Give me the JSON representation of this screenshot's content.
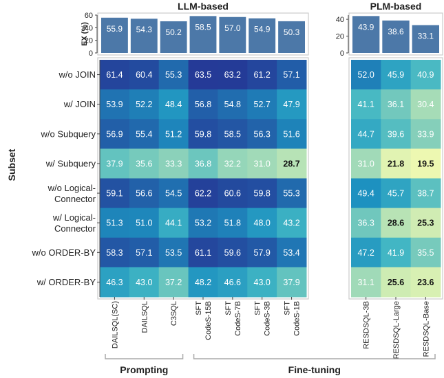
{
  "chart_data": {
    "type": "heatmap",
    "y_title": "Subset",
    "groups": [
      {
        "title": "LLM-based",
        "bar_axis_label": "EX (%)",
        "bar_ticks": [
          "60",
          "40",
          "20",
          "0"
        ],
        "bar_ylim": [
          0,
          60
        ]
      },
      {
        "title": "PLM-based",
        "bar_axis_label": "",
        "bar_ticks": [
          "40",
          "20",
          "0"
        ],
        "bar_ylim": [
          0,
          45
        ]
      }
    ],
    "columns": [
      {
        "label": "DAILSQL(SC)",
        "label_lines": [
          "DAILSQL(SC)"
        ],
        "group": 0
      },
      {
        "label": "DAILSQL",
        "label_lines": [
          "DAILSQL"
        ],
        "group": 0
      },
      {
        "label": "C3SQL",
        "label_lines": [
          "C3SQL"
        ],
        "group": 0
      },
      {
        "label": "SFT CodeS-15B",
        "label_lines": [
          "SFT",
          "CodeS-15B"
        ],
        "group": 0
      },
      {
        "label": "SFT CodeS-7B",
        "label_lines": [
          "SFT",
          "CodeS-7B"
        ],
        "group": 0
      },
      {
        "label": "SFT CodeS-3B",
        "label_lines": [
          "SFT",
          "CodeS-3B"
        ],
        "group": 0
      },
      {
        "label": "SFT CodeS-1B",
        "label_lines": [
          "SFT",
          "CodeS-1B"
        ],
        "group": 0
      },
      {
        "label": "RESDSQL-3B",
        "label_lines": [
          "RESDSQL-3B"
        ],
        "group": 1
      },
      {
        "label": "RESDSQL-Large",
        "label_lines": [
          "RESDSQL-Large"
        ],
        "group": 1
      },
      {
        "label": "RESDSQL-Base",
        "label_lines": [
          "RESDSQL-Base"
        ],
        "group": 1
      }
    ],
    "overall_ex": [
      55.9,
      54.3,
      50.2,
      58.5,
      57.0,
      54.9,
      50.3,
      43.9,
      38.6,
      33.1
    ],
    "overall_ex_labels": [
      "55.9",
      "54.3",
      "50.2",
      "58.5",
      "57.0",
      "54.9",
      "50.3",
      "43.9",
      "38.6",
      "33.1"
    ],
    "rows": [
      {
        "label": "w/o JOIN",
        "label_lines": [
          "w/o JOIN"
        ],
        "values": [
          61.4,
          60.4,
          55.3,
          63.5,
          63.2,
          61.2,
          57.1,
          52.0,
          45.9,
          40.9
        ],
        "value_labels": [
          "61.4",
          "60.4",
          "55.3",
          "63.5",
          "63.2",
          "61.2",
          "57.1",
          "52.0",
          "45.9",
          "40.9"
        ]
      },
      {
        "label": "w/ JOIN",
        "label_lines": [
          "w/ JOIN"
        ],
        "values": [
          53.9,
          52.2,
          48.4,
          56.8,
          54.8,
          52.7,
          47.9,
          41.1,
          36.1,
          30.4
        ],
        "value_labels": [
          "53.9",
          "52.2",
          "48.4",
          "56.8",
          "54.8",
          "52.7",
          "47.9",
          "41.1",
          "36.1",
          "30.4"
        ]
      },
      {
        "label": "w/o Subquery",
        "label_lines": [
          "w/o Subquery"
        ],
        "values": [
          56.9,
          55.4,
          51.2,
          59.8,
          58.5,
          56.3,
          51.6,
          44.7,
          39.6,
          33.9
        ],
        "value_labels": [
          "56.9",
          "55.4",
          "51.2",
          "59.8",
          "58.5",
          "56.3",
          "51.6",
          "44.7",
          "39.6",
          "33.9"
        ]
      },
      {
        "label": "w/ Subquery",
        "label_lines": [
          "w/ Subquery"
        ],
        "values": [
          37.9,
          35.6,
          33.3,
          36.8,
          32.2,
          31.0,
          28.7,
          31.0,
          21.8,
          19.5
        ],
        "value_labels": [
          "37.9",
          "35.6",
          "33.3",
          "36.8",
          "32.2",
          "31.0",
          "28.7",
          "31.0",
          "21.8",
          "19.5"
        ]
      },
      {
        "label": "w/o Logical-Connector",
        "label_lines": [
          "w/o Logical-",
          "Connector"
        ],
        "values": [
          59.1,
          56.6,
          54.5,
          62.2,
          60.6,
          59.8,
          55.3,
          49.4,
          45.7,
          38.7
        ],
        "value_labels": [
          "59.1",
          "56.6",
          "54.5",
          "62.2",
          "60.6",
          "59.8",
          "55.3",
          "49.4",
          "45.7",
          "38.7"
        ]
      },
      {
        "label": "w/ Logical-Connector",
        "label_lines": [
          "w/ Logical-",
          "Connector"
        ],
        "values": [
          51.3,
          51.0,
          44.1,
          53.2,
          51.8,
          48.0,
          43.2,
          36.3,
          28.6,
          25.3
        ],
        "value_labels": [
          "51.3",
          "51.0",
          "44.1",
          "53.2",
          "51.8",
          "48.0",
          "43.2",
          "36.3",
          "28.6",
          "25.3"
        ]
      },
      {
        "label": "w/o ORDER-BY",
        "label_lines": [
          "w/o ORDER-BY"
        ],
        "values": [
          58.3,
          57.1,
          53.5,
          61.1,
          59.6,
          57.9,
          53.4,
          47.2,
          41.9,
          35.5
        ],
        "value_labels": [
          "58.3",
          "57.1",
          "53.5",
          "61.1",
          "59.6",
          "57.9",
          "53.4",
          "47.2",
          "41.9",
          "35.5"
        ]
      },
      {
        "label": "w/ ORDER-BY",
        "label_lines": [
          "w/ ORDER-BY"
        ],
        "values": [
          46.3,
          43.0,
          37.2,
          48.2,
          46.6,
          43.0,
          37.9,
          31.1,
          25.6,
          23.6
        ],
        "value_labels": [
          "46.3",
          "43.0",
          "37.2",
          "48.2",
          "46.6",
          "43.0",
          "37.9",
          "31.1",
          "25.6",
          "23.6"
        ]
      }
    ],
    "brackets": [
      {
        "label": "Prompting",
        "from_col": 0,
        "to_col": 2
      },
      {
        "label": "Fine-tuning",
        "from_col": 3,
        "to_col": 9
      }
    ],
    "bar_color": "#4C78A8",
    "colormap": "YlGnBu"
  }
}
